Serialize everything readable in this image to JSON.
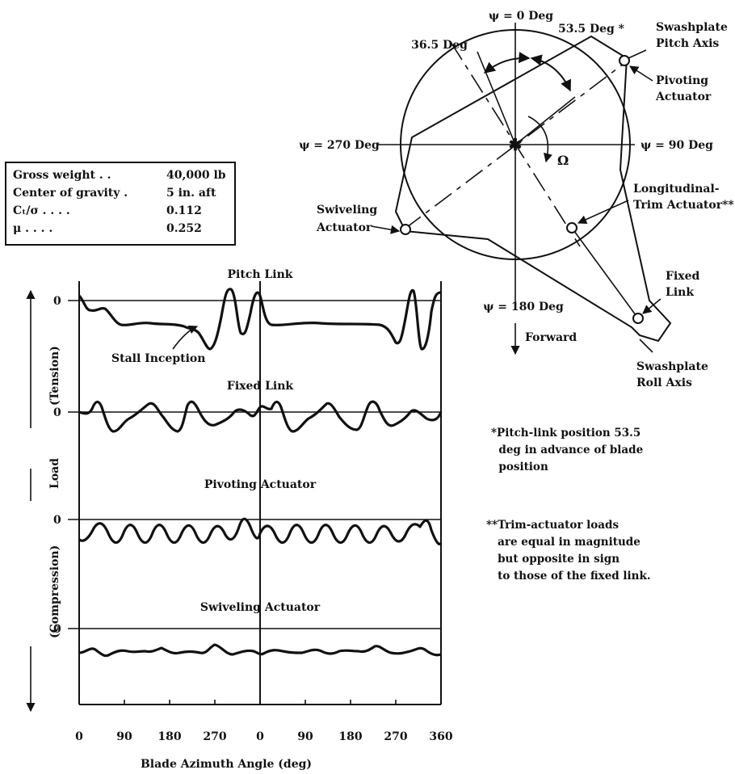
{
  "params": [
    {
      "label": "Gross weight  .  .",
      "value": "40,000 lb"
    },
    {
      "label": "Center of gravity .",
      "value": "5 in. aft"
    },
    {
      "label": "Cₜ/σ .     .    .    .",
      "value": "0.112"
    },
    {
      "label": "μ .    .    .    .",
      "value": "0.252"
    }
  ],
  "plots": [
    {
      "title": "Pitch Link",
      "zero": "0"
    },
    {
      "title": "Fixed Link",
      "zero": "0"
    },
    {
      "title": "Pivoting Actuator",
      "zero": "0"
    },
    {
      "title": "Swiveling Actuator",
      "zero": "0"
    }
  ],
  "stall_label": "Stall Inception",
  "y_axis": {
    "tension": "(Tension)",
    "load": "Load",
    "compression": "(Compression)"
  },
  "x_axis": {
    "ticks": [
      "0",
      "90",
      "180",
      "270",
      "0",
      "90",
      "180",
      "270",
      "360"
    ],
    "label": "Blade Azimuth Angle (deg)"
  },
  "disk": {
    "psi0": "ψ = 0 Deg",
    "psi90": "ψ = 90 Deg",
    "psi180": "ψ = 180 Deg",
    "psi270": "ψ = 270 Deg",
    "ang1": "36.5 Deg",
    "ang2": "53.5 Deg *",
    "omega": "Ω",
    "forward": "Forward",
    "swashplate_pitch": [
      "Swashplate",
      "Pitch Axis"
    ],
    "pivoting": [
      "Pivoting",
      "Actuator"
    ],
    "longitudinal": [
      "Longitudinal-",
      "Trim Actuator**"
    ],
    "swiveling": [
      "Swiveling",
      "Actuator"
    ],
    "fixed_link": [
      "Fixed",
      "Link"
    ],
    "swashplate_roll": [
      "Swashplate",
      "Roll Axis"
    ]
  },
  "notes": {
    "note1": "*Pitch-link position 53.5\n  deg in advance of blade\n  position",
    "note2": "**Trim-actuator loads\n   are equal in magnitude\n   but opposite in sign\n   to those of the fixed link."
  }
}
